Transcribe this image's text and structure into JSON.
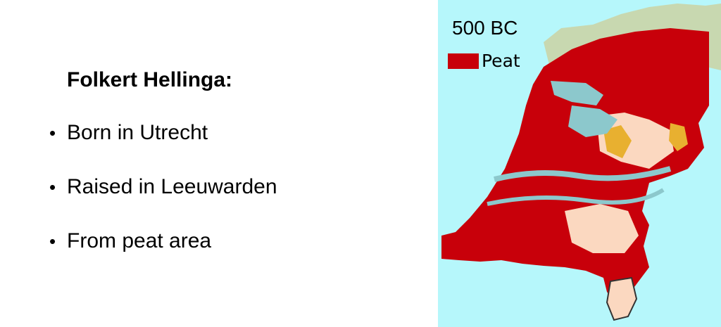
{
  "slide": {
    "title": "Folkert Hellinga:",
    "bullets": [
      "Born in Utrecht",
      "Raised in Leeuwarden",
      "From peat area"
    ]
  },
  "map": {
    "year_label": "500 BC",
    "legend": {
      "label": "Peat",
      "color": "#c8000a"
    },
    "colors": {
      "sea": "#b6f7fb",
      "peat": "#c8000a",
      "water": "#8cc8cc",
      "coastal": "#c8d8b0",
      "sand": "#fbd8c0",
      "dunes": "#e8b030"
    }
  }
}
